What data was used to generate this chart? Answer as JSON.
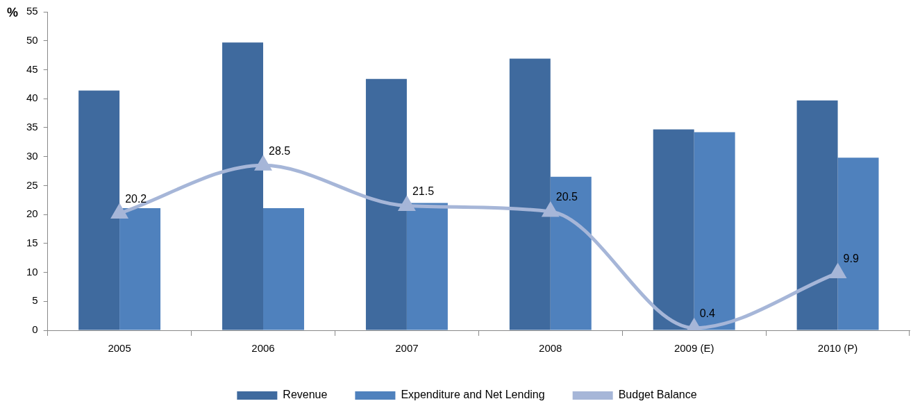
{
  "chart_data": {
    "type": "bar",
    "ylabel": "%",
    "categories": [
      "2005",
      "2006",
      "2007",
      "2008",
      "2009 (E)",
      "2010 (P)"
    ],
    "series": [
      {
        "name": "Revenue",
        "color": "#3f6a9e",
        "values": [
          41.4,
          49.7,
          43.4,
          46.9,
          34.7,
          39.7
        ]
      },
      {
        "name": "Expenditure and Net Lending",
        "color": "#4f81bd",
        "values": [
          21.1,
          21.1,
          22.0,
          26.5,
          34.2,
          29.8
        ]
      },
      {
        "name": "Budget Balance",
        "type": "line",
        "color": "#a6b6d8",
        "marker": "triangle",
        "values": [
          20.2,
          28.5,
          21.5,
          20.5,
          0.4,
          9.9
        ],
        "value_labels": [
          "20.2",
          "28.5",
          "21.5",
          "20.5",
          "0.4",
          "9.9"
        ]
      }
    ],
    "ylim": [
      0,
      55
    ],
    "yticks": [
      0,
      5,
      10,
      15,
      20,
      25,
      30,
      35,
      40,
      45,
      50,
      55
    ],
    "grid": false,
    "legend": "bottom"
  }
}
